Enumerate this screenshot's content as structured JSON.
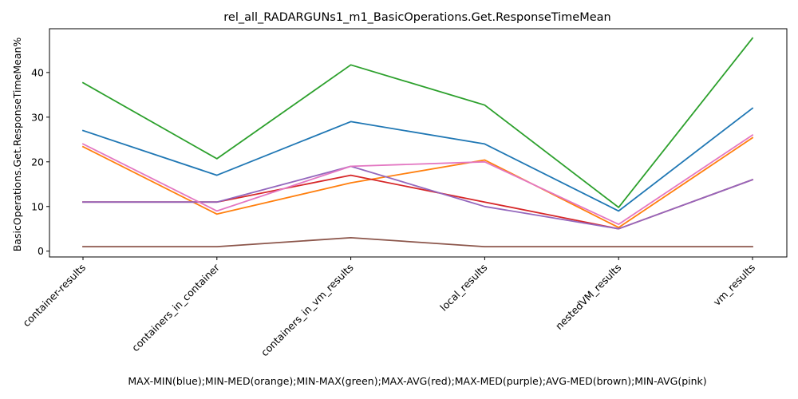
{
  "chart_data": {
    "type": "line",
    "title": "rel_all_RADARGUNs1_m1_BasicOperations.Get.ResponseTimeMean",
    "xlabel": "MAX-MIN(blue);MIN-MED(orange);MIN-MAX(green);MAX-AVG(red);MAX-MED(purple);AVG-MED(brown);MIN-AVG(pink)",
    "ylabel": "BasicOperations.Get.ResponseTimeMean%",
    "categories": [
      "container-results",
      "containers_in_container",
      "containers_in_vm_results",
      "local_results",
      "nestedVM_results",
      "vm_results"
    ],
    "ylim": [
      -1.3,
      49.8
    ],
    "yticks": [
      0,
      10,
      20,
      30,
      40
    ],
    "grid": false,
    "series": [
      {
        "color": "#1f77b4",
        "values": [
          27,
          17,
          29,
          24,
          9,
          32
        ]
      },
      {
        "color": "#ff7f0e",
        "values": [
          23.4,
          8.3,
          15.3,
          20.4,
          5.3,
          25.4
        ]
      },
      {
        "color": "#2ca02c",
        "values": [
          37.7,
          20.7,
          41.7,
          32.7,
          9.8,
          47.7
        ]
      },
      {
        "color": "#d62728",
        "values": [
          11,
          11,
          17,
          11,
          5,
          16
        ]
      },
      {
        "color": "#9467bd",
        "values": [
          11,
          11,
          19,
          10,
          5,
          16
        ]
      },
      {
        "color": "#8c564b",
        "values": [
          1,
          1,
          3,
          1,
          1,
          1
        ]
      },
      {
        "color": "#e377c2",
        "values": [
          24,
          9,
          19,
          20,
          6,
          26
        ]
      }
    ]
  }
}
